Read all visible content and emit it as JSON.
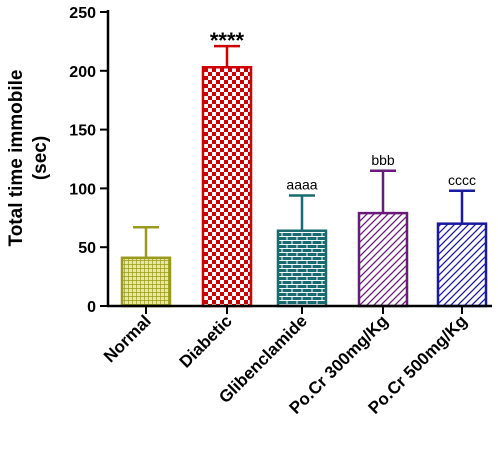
{
  "chart_data": {
    "type": "bar",
    "title": "",
    "xlabel": "",
    "ylabel_line1": "Total time immobile",
    "ylabel_line2": "(sec)",
    "ylim": [
      0,
      250
    ],
    "yticks": [
      0,
      50,
      100,
      150,
      200,
      250
    ],
    "grid": false,
    "categories": [
      "Normal",
      "Diabetic",
      "Glibenclamide",
      "Po.Cr 300mg/Kg",
      "Po.Cr 500mg/Kg"
    ],
    "values": [
      41,
      203,
      64,
      79,
      70
    ],
    "error_upper": [
      67,
      221,
      94,
      115,
      98
    ],
    "annotations": [
      "",
      "****",
      "aaaa",
      "bbb",
      "cccc"
    ],
    "colors": [
      "#9a9a1f",
      "#cc0000",
      "#1a6a72",
      "#6a1a7a",
      "#1a1aa0"
    ],
    "patterns": [
      "crosshatch-fine",
      "checkerboard",
      "brick",
      "diagonal",
      "diagonal"
    ]
  }
}
